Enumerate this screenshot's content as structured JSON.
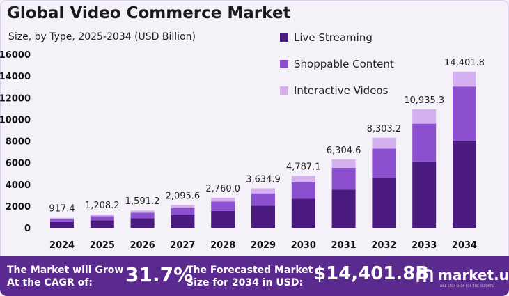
{
  "header": {
    "title": "Global Video Commerce Market",
    "subtitle": "Size, by Type, 2025-2034 (USD Billion)"
  },
  "chart_data": {
    "type": "bar",
    "stacked": true,
    "title": "Global Video Commerce Market",
    "subtitle": "Size, by Type, 2025-2034 (USD Billion)",
    "categories": [
      "2024",
      "2025",
      "2026",
      "2027",
      "2028",
      "2029",
      "2030",
      "2031",
      "2032",
      "2033",
      "2034"
    ],
    "totals": [
      "917.4",
      "1,208.2",
      "1,591.2",
      "2,095.6",
      "2,760.0",
      "3,634.9",
      "4,787.1",
      "6,304.6",
      "8,303.2",
      "10,935.3",
      "14,401.8"
    ],
    "series": [
      {
        "name": "Live Streaming",
        "color": "#4a1a7e",
        "values": [
          520,
          690,
          880,
          1160,
          1550,
          2030,
          2670,
          3520,
          4650,
          6120,
          8050
        ]
      },
      {
        "name": "Shoppable Content",
        "color": "#8c4fd0",
        "values": [
          290,
          370,
          510,
          660,
          860,
          1140,
          1520,
          2010,
          2640,
          3480,
          4980
        ]
      },
      {
        "name": "Interactive Videos",
        "color": "#d4b0f0",
        "values": [
          107.4,
          148.2,
          201.2,
          275.6,
          350.0,
          464.9,
          597.1,
          774.6,
          1013.2,
          1335.3,
          1371.8
        ]
      }
    ],
    "yticks": [
      "0",
      "2000",
      "4000",
      "6000",
      "8000",
      "10000",
      "12000",
      "14000",
      "16000"
    ],
    "ylim": [
      0,
      16000
    ],
    "legend_position": "top-right",
    "grid": false
  },
  "footer": {
    "cagr_label_line1": "The Market will Grow",
    "cagr_label_line2": "At the CAGR of:",
    "cagr_value": "31.7%",
    "forecast_label_line1": "The Forecasted Market",
    "forecast_label_line2": "Size for 2034 in USD:",
    "forecast_value": "$14,401.8B",
    "brand": "market.us",
    "brand_tagline": "ONE STOP SHOP FOR THE REPORTS"
  },
  "colors": {
    "footer_bg": "#5b2a8e",
    "background": "#f4f1f9"
  }
}
